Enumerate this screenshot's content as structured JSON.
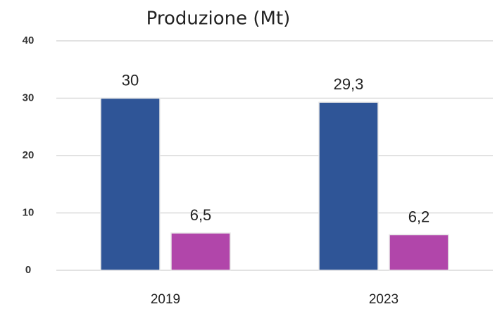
{
  "chart_data": {
    "type": "bar",
    "title": "Produzione (Mt)",
    "categories": [
      "2019",
      "2023"
    ],
    "series": [
      {
        "color": "#2f5597",
        "values": [
          30,
          29.3
        ],
        "value_labels": [
          "30",
          "29,3"
        ]
      },
      {
        "color": "#b146aa",
        "values": [
          6.5,
          6.2
        ],
        "value_labels": [
          "6,5",
          "6,2"
        ]
      }
    ],
    "ylim": [
      0,
      40
    ],
    "yticks": [
      0,
      10,
      20,
      30,
      40
    ],
    "grid": true
  }
}
